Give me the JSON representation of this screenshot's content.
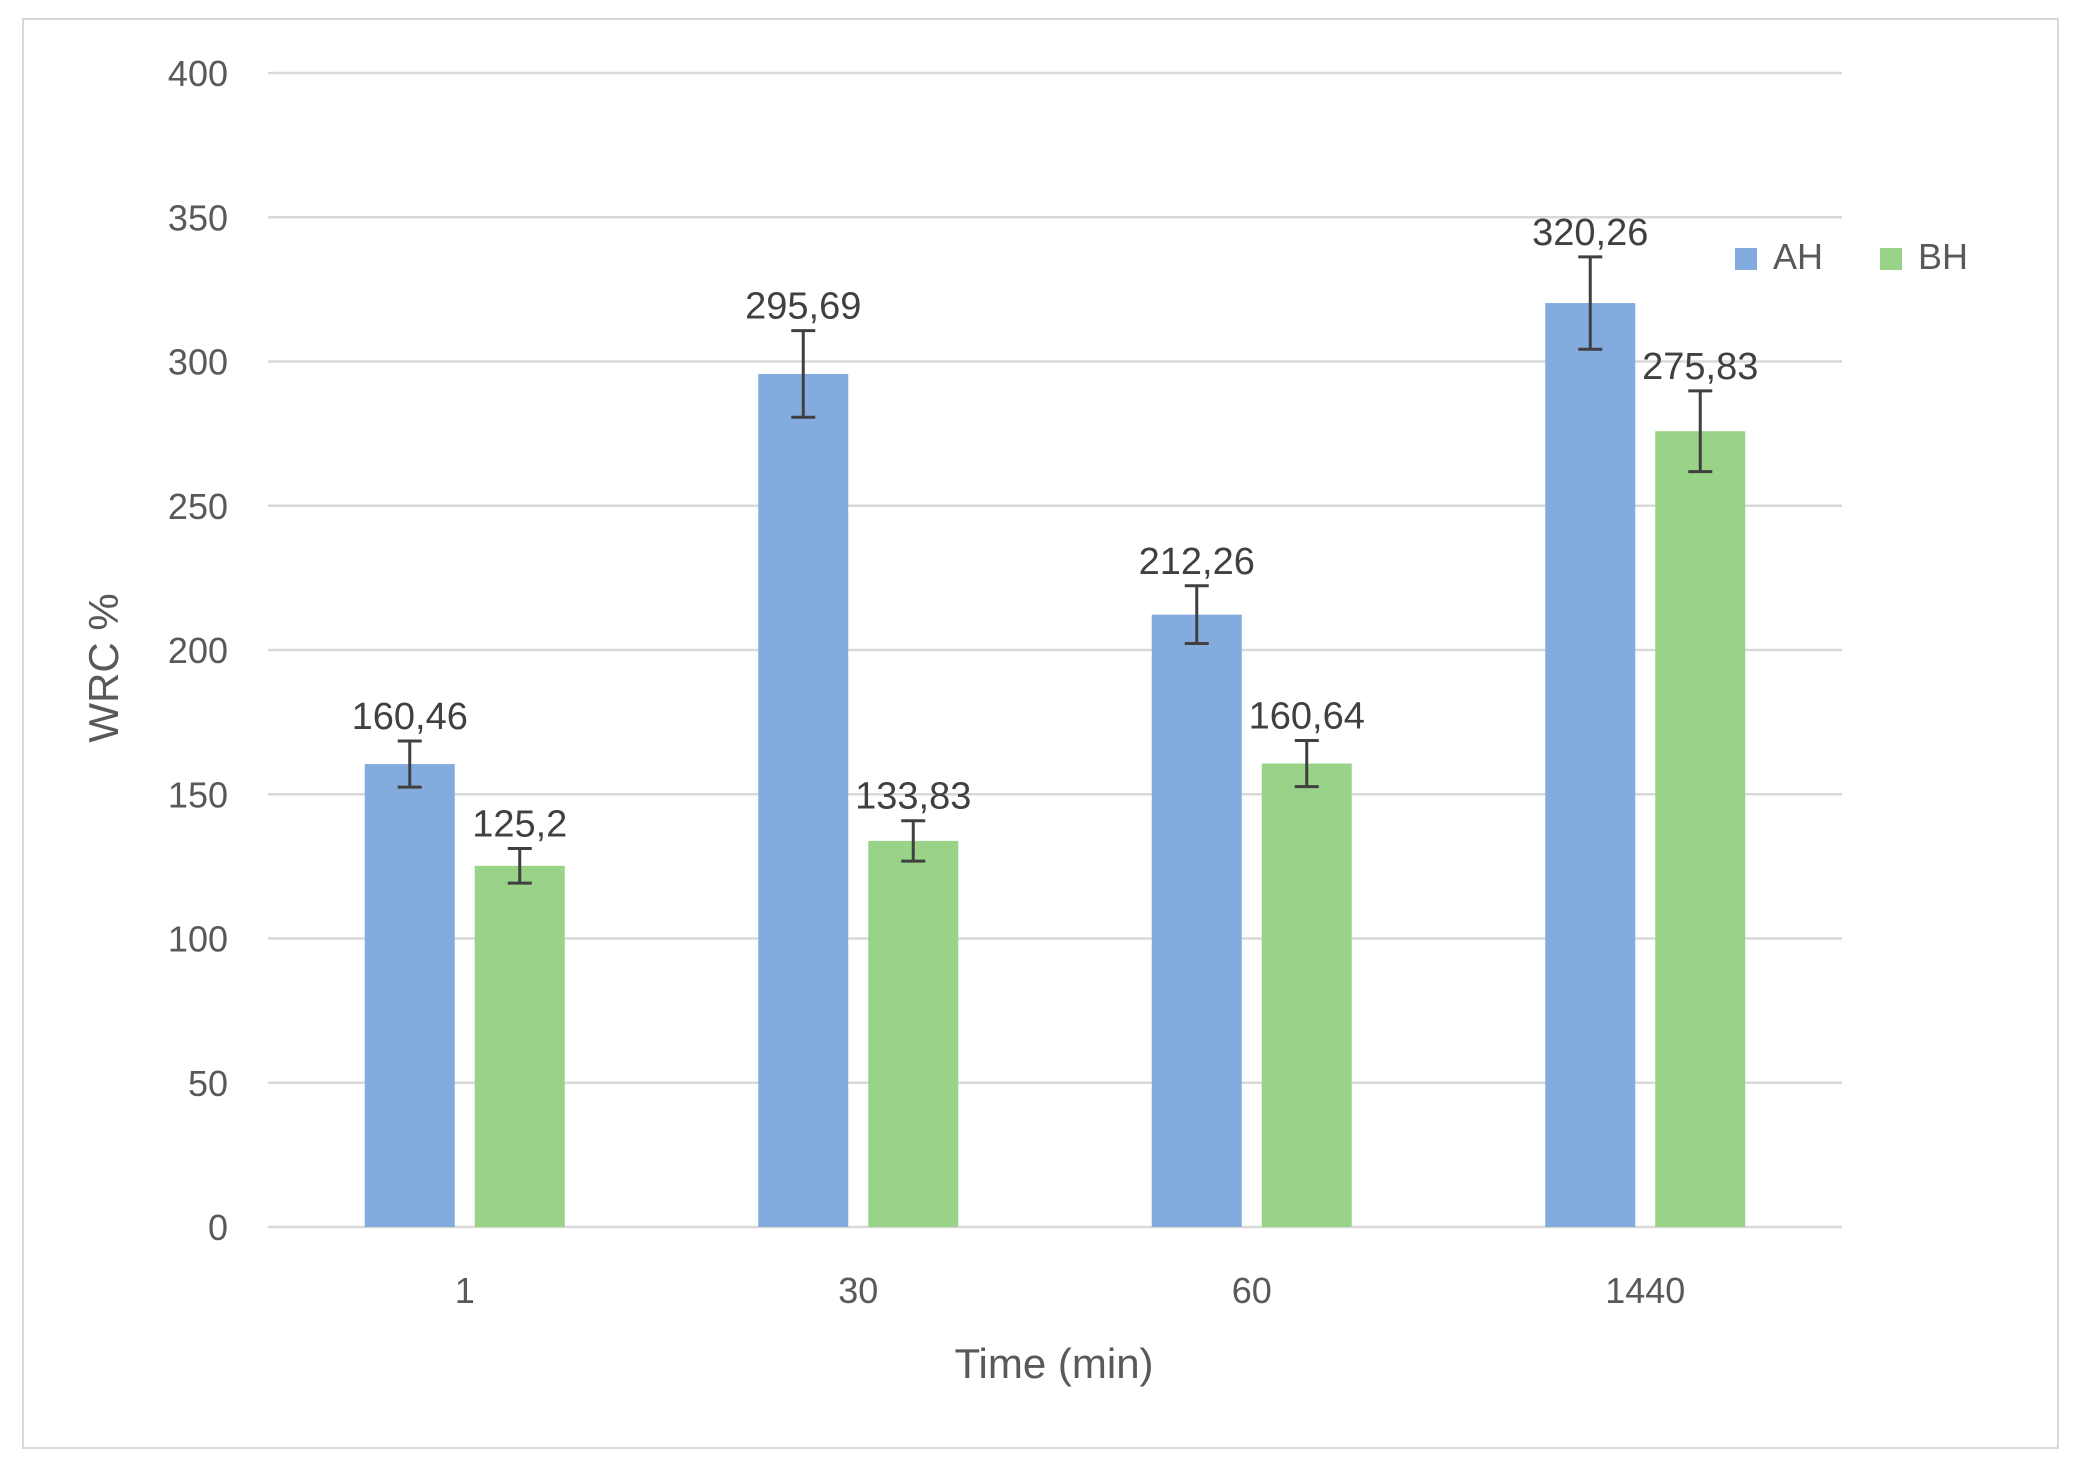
{
  "chart_data": {
    "type": "bar",
    "title": "",
    "xlabel": "Time (min)",
    "ylabel": "WRC %",
    "categories": [
      "1",
      "30",
      "60",
      "1440"
    ],
    "ylim": [
      0,
      400
    ],
    "yticks": [
      0,
      50,
      100,
      150,
      200,
      250,
      300,
      350,
      400
    ],
    "grid": true,
    "legend_position": "top-right",
    "series": [
      {
        "name": "AH",
        "color": "#84ABDE",
        "values": [
          160.46,
          295.69,
          212.26,
          320.26
        ],
        "labels": [
          "160,46",
          "295,69",
          "212,26",
          "320,26"
        ],
        "error": [
          8,
          15,
          10,
          16
        ]
      },
      {
        "name": "BH",
        "color": "#98D387",
        "values": [
          125.2,
          133.83,
          160.64,
          275.83
        ],
        "labels": [
          "125,2",
          "133,83",
          "160,64",
          "275,83"
        ],
        "error": [
          6,
          7,
          8,
          14
        ]
      }
    ],
    "colors": {
      "grid": "#d9d9d9",
      "text": "#595959",
      "error_bar": "#404040"
    }
  }
}
